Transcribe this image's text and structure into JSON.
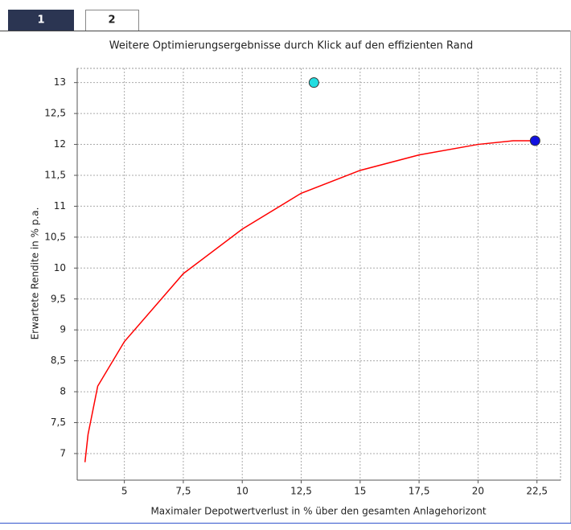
{
  "tabs": [
    "1",
    "2"
  ],
  "chart_data": {
    "type": "line",
    "title": "Weitere Optimierungsergebnisse durch Klick auf den effizienten Rand",
    "x_label": "Maximaler Depotwertverlust in % über den gesamten Anlagehorizont",
    "y_label": "Erwartete Rendite in % p.a.",
    "xlim": [
      3,
      23.5
    ],
    "ylim": [
      6.57,
      13.23
    ],
    "xticks": [
      5,
      {
        "value": 7.5,
        "label": "7,5"
      },
      10,
      {
        "value": 12.5,
        "label": "12,5"
      },
      15,
      {
        "value": 17.5,
        "label": "17,5"
      },
      20,
      {
        "value": 22.5,
        "label": "22,5"
      }
    ],
    "yticks": [
      13,
      {
        "value": 12.5,
        "label": "12,5"
      },
      12,
      {
        "value": 11.5,
        "label": "11,5"
      },
      11,
      {
        "value": 10.5,
        "label": "10,5"
      },
      10,
      {
        "value": 9.5,
        "label": "9,5"
      },
      9,
      {
        "value": 8.5,
        "label": "8,5"
      },
      8,
      {
        "value": 7.5,
        "label": "7,5"
      },
      7
    ],
    "grid": true,
    "series": [
      {
        "color": "#ff0000",
        "x": [
          3.33,
          3.46,
          3.87,
          5.0,
          7.5,
          10,
          12.5,
          15,
          17.5,
          20,
          21.5,
          22.36
        ],
        "values": [
          6.86,
          7.31,
          8.09,
          8.81,
          9.91,
          10.63,
          11.21,
          11.58,
          11.83,
          12.0,
          12.06,
          12.06
        ]
      },
      {
        "color": "#22dde0",
        "marker": true,
        "x": [
          13.04
        ],
        "values": [
          13
        ]
      },
      {
        "color": "#1010e0",
        "marker": true,
        "x": [
          22.42
        ],
        "values": [
          12.06
        ]
      }
    ]
  }
}
